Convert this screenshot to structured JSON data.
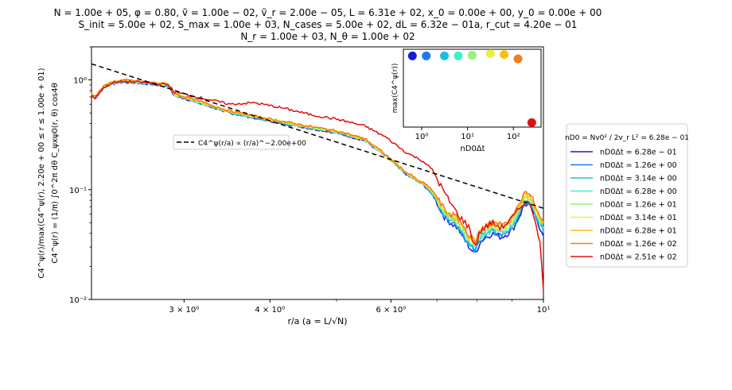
{
  "title_lines": [
    "N = 1.00e + 05, φ = 0.80, ṽ = 1.00e − 02, ṽ_r = 2.00e − 05, L = 6.31e + 02, x_0 = 0.00e + 00, y_0 = 0.00e + 00",
    "S_init = 5.00e + 02, S_max = 1.00e + 03, N_cases = 5.00e + 02, dL = 6.32e − 01a, r_cut = 4.20e − 01",
    "N_r = 1.00e + 03, N_θ = 1.00e + 02"
  ],
  "main_chart": {
    "xlabel": "r/a (a = L/√N)",
    "ylabel_line1": "C4^ψ(r)/max(C4^ψ(r), 2.20e + 00 ≤ r ≤ 1.00e + 01)",
    "ylabel_line2": "C4^ψ(r) = (1/π) ∫0^2π dθ C_ψxψ0(r, θ) cos4θ",
    "xscale": "log",
    "yscale": "log",
    "xlim": [
      2.2,
      10.0
    ],
    "ylim": [
      0.01,
      2.0
    ],
    "xtick_labels": [
      "3 × 10⁰",
      "4 × 10⁰",
      "6 × 10⁰",
      "10¹"
    ],
    "xtick_values": [
      3,
      4,
      6,
      10
    ],
    "ytick_labels": [
      "10⁰",
      "10⁻¹",
      "10⁻²"
    ],
    "ytick_values": [
      1,
      0.1,
      0.01
    ],
    "fit_legend": "C4^ψ(r/a) ∝ (r/a)^−2.00e+00",
    "fit_line": {
      "exponent": -2.0,
      "color": "#000000",
      "style": "dashed",
      "y_at_x_min": 1.4
    },
    "series": [
      {
        "name": "nD0Δt = 6.28e − 01",
        "color": "#1a1adc"
      },
      {
        "name": "nD0Δt = 1.26e + 00",
        "color": "#1f78f0"
      },
      {
        "name": "nD0Δt = 3.14e + 00",
        "color": "#19c0e0"
      },
      {
        "name": "nD0Δt = 6.28e + 00",
        "color": "#3ff0c8"
      },
      {
        "name": "nD0Δt = 1.26e + 01",
        "color": "#9af078"
      },
      {
        "name": "nD0Δt = 3.14e + 01",
        "color": "#e8f040"
      },
      {
        "name": "nD0Δt = 6.28e + 01",
        "color": "#f8c010"
      },
      {
        "name": "nD0Δt = 1.26e + 02",
        "color": "#f87a18"
      },
      {
        "name": "nD0Δt = 2.51e + 02",
        "color": "#e01010"
      }
    ],
    "base_curve": {
      "x": [
        2.2,
        2.23,
        2.28,
        2.35,
        2.45,
        2.6,
        2.75,
        2.85,
        2.9,
        3.0,
        3.2,
        3.5,
        3.8,
        4.2,
        4.6,
        5.0,
        5.5,
        5.9,
        6.3,
        6.7,
        6.9,
        7.2,
        7.5,
        7.8,
        7.95,
        8.1,
        8.4,
        8.7,
        9.0,
        9.2,
        9.4,
        9.6,
        9.8,
        10.0
      ],
      "y": [
        0.72,
        0.68,
        0.82,
        0.92,
        0.96,
        0.93,
        0.9,
        0.88,
        0.72,
        0.68,
        0.6,
        0.5,
        0.45,
        0.4,
        0.36,
        0.33,
        0.28,
        0.2,
        0.14,
        0.11,
        0.09,
        0.055,
        0.045,
        0.03,
        0.026,
        0.034,
        0.04,
        0.037,
        0.043,
        0.055,
        0.075,
        0.068,
        0.05,
        0.04
      ]
    },
    "red_curve": {
      "x": [
        2.2,
        2.23,
        2.28,
        2.35,
        2.45,
        2.6,
        2.75,
        2.85,
        2.9,
        3.0,
        3.2,
        3.5,
        3.8,
        4.2,
        4.6,
        5.0,
        5.5,
        5.9,
        6.3,
        6.7,
        6.9,
        7.2,
        7.5,
        7.8,
        7.95,
        8.1,
        8.4,
        8.7,
        9.0,
        9.2,
        9.4,
        9.6,
        9.8,
        9.9,
        10.0
      ],
      "y": [
        0.72,
        0.68,
        0.83,
        0.93,
        0.97,
        0.95,
        0.92,
        0.9,
        0.78,
        0.74,
        0.68,
        0.6,
        0.62,
        0.55,
        0.48,
        0.44,
        0.38,
        0.3,
        0.22,
        0.18,
        0.15,
        0.09,
        0.06,
        0.045,
        0.03,
        0.042,
        0.05,
        0.045,
        0.055,
        0.065,
        0.08,
        0.07,
        0.045,
        0.03,
        0.012
      ]
    }
  },
  "inset_chart": {
    "xlabel": "nD0Δt",
    "ylabel": "max(C4^ψ(r))",
    "xscale": "log",
    "xlim": [
      0.4,
      400
    ],
    "ylim": [
      0,
      1.05
    ],
    "xtick_labels": [
      "10⁰",
      "10¹",
      "10²"
    ],
    "xtick_values": [
      1,
      10,
      100
    ],
    "points": [
      {
        "x": 0.628,
        "y": 0.96,
        "color": "#1a1adc"
      },
      {
        "x": 1.26,
        "y": 0.96,
        "color": "#1f78f0"
      },
      {
        "x": 3.14,
        "y": 0.96,
        "color": "#19c0e0"
      },
      {
        "x": 6.28,
        "y": 0.96,
        "color": "#3ff0c8"
      },
      {
        "x": 12.6,
        "y": 0.97,
        "color": "#9af078"
      },
      {
        "x": 31.4,
        "y": 0.99,
        "color": "#e8f040"
      },
      {
        "x": 62.8,
        "y": 0.98,
        "color": "#f8c010"
      },
      {
        "x": 126,
        "y": 0.92,
        "color": "#f87a18"
      },
      {
        "x": 251,
        "y": 0.06,
        "color": "#e01010"
      }
    ]
  },
  "legend": {
    "title": "nD0 = Nv0² / 2v_r L² = 6.28e − 01"
  }
}
